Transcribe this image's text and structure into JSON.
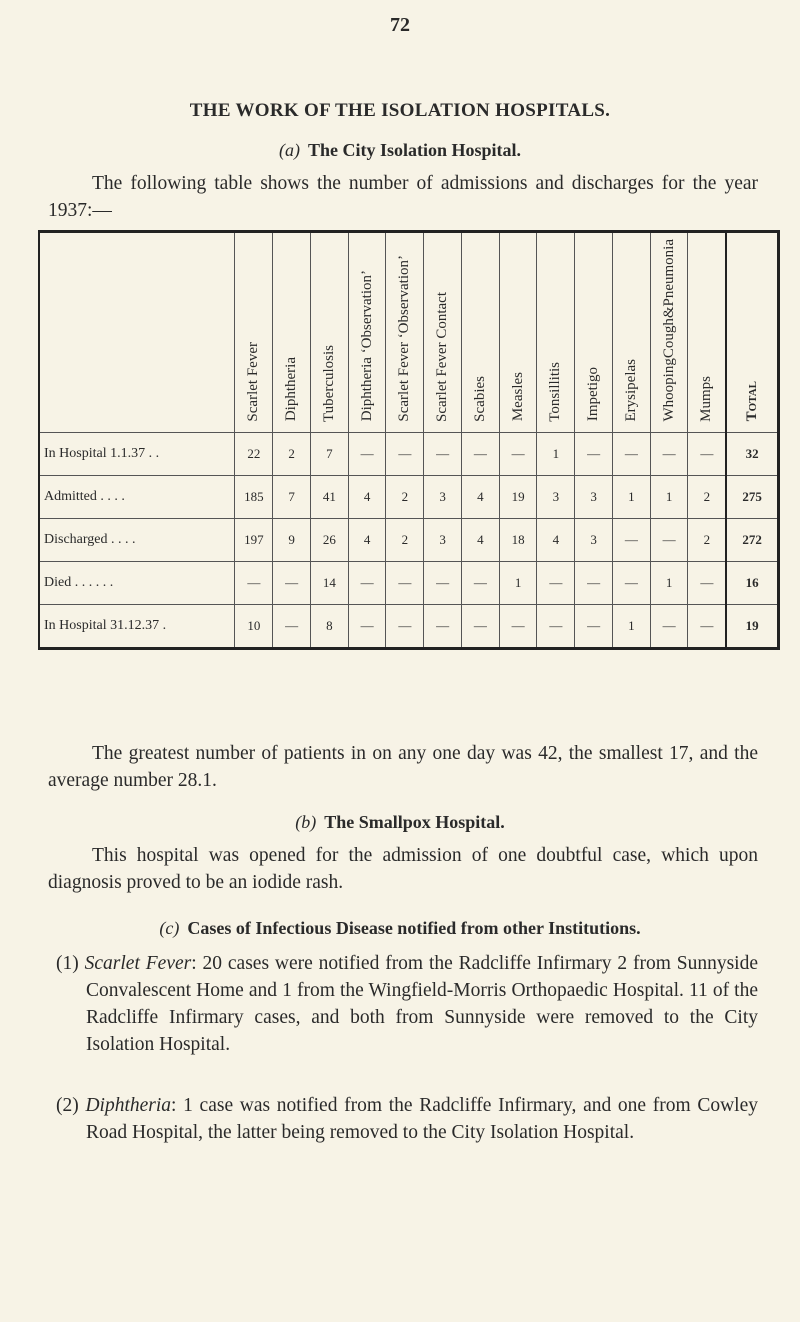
{
  "page_number": "72",
  "title": "THE WORK OF THE ISOLATION HOSPITALS.",
  "section_a": {
    "marker": "(a)",
    "heading": "The City Isolation Hospital."
  },
  "intro": "The following table shows the number of admissions and discharges for the year 1937:—",
  "table": {
    "columns": [
      "Scarlet Fever",
      "Diphtheria",
      "Tuberculosis",
      "Diphtheria ‘Observation’",
      "Scarlet Fever ‘Observation’",
      "Scarlet Fever Contact",
      "Scabies",
      "Measles",
      "Tonsillitis",
      "Impetigo",
      "Erysipelas",
      "WhoopingCough&Pneumonia",
      "Mumps",
      "Total"
    ],
    "rows": [
      {
        "label": "In Hospital 1.1.37 . .",
        "values": [
          "22",
          "2",
          "7",
          "—",
          "—",
          "—",
          "—",
          "—",
          "1",
          "—",
          "—",
          "—",
          "—",
          "32"
        ]
      },
      {
        "label": "Admitted . . . .",
        "values": [
          "185",
          "7",
          "41",
          "4",
          "2",
          "3",
          "4",
          "19",
          "3",
          "3",
          "1",
          "1",
          "2",
          "275"
        ]
      },
      {
        "label": "Discharged . . . .",
        "values": [
          "197",
          "9",
          "26",
          "4",
          "2",
          "3",
          "4",
          "18",
          "4",
          "3",
          "—",
          "—",
          "2",
          "272"
        ]
      },
      {
        "label": "Died . . . . . .",
        "values": [
          "—",
          "—",
          "14",
          "—",
          "—",
          "—",
          "—",
          "1",
          "—",
          "—",
          "—",
          "1",
          "—",
          "16"
        ]
      },
      {
        "label": "In Hospital 31.12.37 .",
        "values": [
          "10",
          "—",
          "8",
          "—",
          "—",
          "—",
          "—",
          "—",
          "—",
          "—",
          "1",
          "—",
          "—",
          "19"
        ]
      }
    ]
  },
  "after_table": "The greatest number of patients in on any one day was 42, the smallest 17, and the average number 28.1.",
  "section_b": {
    "marker": "(b)",
    "heading": "The Smallpox Hospital.",
    "text": "This hospital was opened for the admission of one doubtful case, which upon diagnosis proved to be an iodide rash."
  },
  "section_c": {
    "marker": "(c)",
    "heading": "Cases of Infectious Disease notified from other Institutions.",
    "items": [
      {
        "num": "(1)",
        "term": "Scarlet Fever",
        "text": ": 20 cases were notified from the Radcliffe Infirmary 2 from Sunnyside Convalescent Home and 1 from the Wingfield-Morris Orthopaedic Hospital. 11 of the Radcliffe Infirmary cases, and both from Sunnyside were removed to the City Isolation Hospital."
      },
      {
        "num": "(2)",
        "term": "Diphtheria",
        "text": ": 1 case was notified from the Radcliffe Infirmary, and one from Cowley Road Hospital, the latter being removed to the City Isolation Hospital."
      }
    ]
  }
}
